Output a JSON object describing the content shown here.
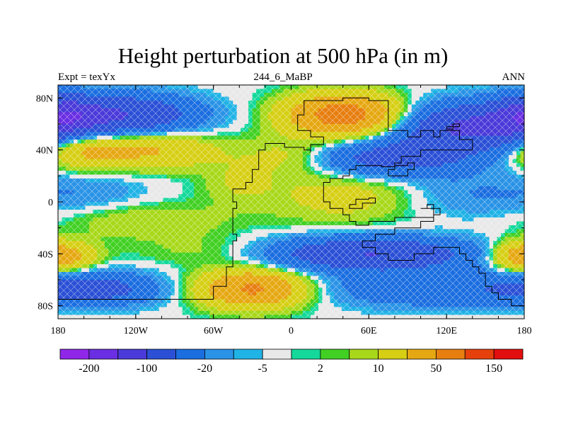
{
  "title": "Height perturbation at 500 hPa (in m)",
  "subtitle_left": "Expt = texYx",
  "subtitle_center": "244_6_MaBP",
  "subtitle_right": "ANN",
  "lat_ticks": [
    {
      "value": 80,
      "label": "80N"
    },
    {
      "value": 40,
      "label": "40N"
    },
    {
      "value": 0,
      "label": "0"
    },
    {
      "value": -40,
      "label": "40S"
    },
    {
      "value": -80,
      "label": "80S"
    }
  ],
  "lon_ticks": [
    {
      "value": -180,
      "label": "180"
    },
    {
      "value": -120,
      "label": "120W"
    },
    {
      "value": -60,
      "label": "60W"
    },
    {
      "value": 0,
      "label": "0"
    },
    {
      "value": 60,
      "label": "60E"
    },
    {
      "value": 120,
      "label": "120E"
    },
    {
      "value": 180,
      "label": "180"
    }
  ],
  "colorbar": {
    "colors": [
      "#8f26e8",
      "#6a2fe3",
      "#4a3ad9",
      "#2b50d6",
      "#1b6ee0",
      "#2a93e6",
      "#20b3e6",
      "#e8e8e8",
      "#14d99b",
      "#41d023",
      "#a8d81a",
      "#d6cf14",
      "#e6a812",
      "#e77e10",
      "#e6410c",
      "#e30e0e"
    ],
    "labels": [
      {
        "boundary": 1,
        "text": "-200"
      },
      {
        "boundary": 3,
        "text": "-100"
      },
      {
        "boundary": 5,
        "text": "-20"
      },
      {
        "boundary": 7,
        "text": "-5"
      },
      {
        "boundary": 9,
        "text": "2"
      },
      {
        "boundary": 11,
        "text": "10"
      },
      {
        "boundary": 13,
        "text": "50"
      },
      {
        "boundary": 15,
        "text": "150"
      }
    ]
  },
  "map_data": {
    "lon_range": [
      -180,
      180
    ],
    "lat_range": [
      -90,
      90
    ],
    "field_anomalies": [
      {
        "lon": -130,
        "lat": 67,
        "value": -95,
        "slon": 40,
        "slat": 11
      },
      {
        "lon": -175,
        "lat": 67,
        "value": -70,
        "slon": 18,
        "slat": 11
      },
      {
        "lon": -120,
        "lat": 40,
        "value": 60,
        "slon": 42,
        "slat": 10
      },
      {
        "lon": -165,
        "lat": 40,
        "value": 35,
        "slon": 18,
        "slat": 10
      },
      {
        "lon": 40,
        "lat": 67,
        "value": 130,
        "slon": 30,
        "slat": 11
      },
      {
        "lon": 140,
        "lat": 57,
        "value": -110,
        "slon": 40,
        "slat": 13
      },
      {
        "lon": 75,
        "lat": 33,
        "value": -70,
        "slon": 45,
        "slat": 10
      },
      {
        "lon": 0,
        "lat": 35,
        "value": 30,
        "slon": 25,
        "slat": 10
      },
      {
        "lon": -40,
        "lat": 15,
        "value": 20,
        "slon": 20,
        "slat": 12
      },
      {
        "lon": -150,
        "lat": 8,
        "value": -15,
        "slon": 30,
        "slat": 10
      },
      {
        "lon": 140,
        "lat": 5,
        "value": -20,
        "slon": 40,
        "slat": 12
      },
      {
        "lon": 40,
        "lat": 5,
        "value": 30,
        "slon": 40,
        "slat": 15
      },
      {
        "lon": -110,
        "lat": -15,
        "value": 20,
        "slon": 45,
        "slat": 10
      },
      {
        "lon": -175,
        "lat": -42,
        "value": 55,
        "slon": 18,
        "slat": 8
      },
      {
        "lon": 175,
        "lat": -42,
        "value": 40,
        "slon": 15,
        "slat": 8
      },
      {
        "lon": 60,
        "lat": -40,
        "value": -100,
        "slon": 55,
        "slat": 9
      },
      {
        "lon": -60,
        "lat": -38,
        "value": 15,
        "slon": 40,
        "slat": 8
      },
      {
        "lon": -30,
        "lat": -67,
        "value": 110,
        "slon": 28,
        "slat": 10
      },
      {
        "lon": -150,
        "lat": -67,
        "value": -60,
        "slon": 35,
        "slat": 9
      },
      {
        "lon": 110,
        "lat": -67,
        "value": -45,
        "slon": 60,
        "slat": 10
      }
    ]
  }
}
